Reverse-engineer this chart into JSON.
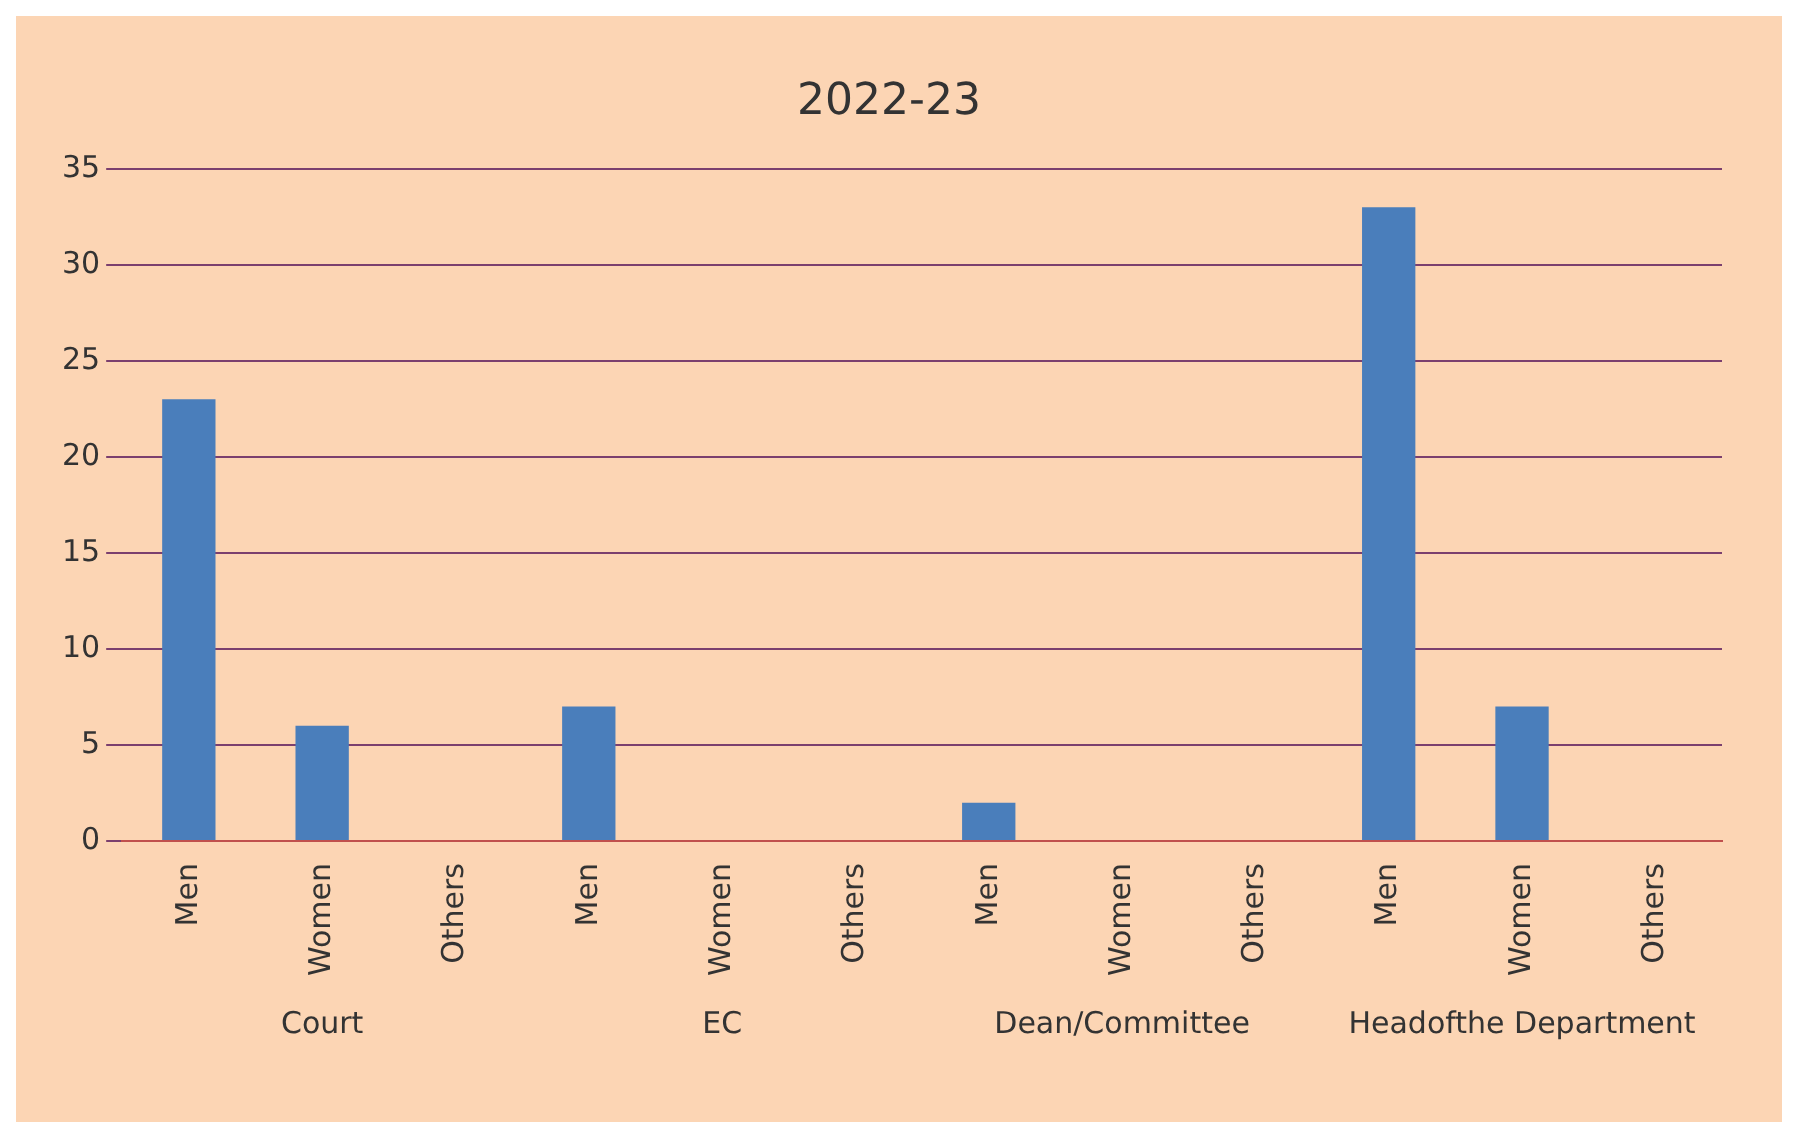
{
  "chart_data": {
    "type": "bar",
    "title": "2022-23",
    "categories": [
      "Men",
      "Women",
      "Others",
      "Men",
      "Women",
      "Others",
      "Men",
      "Women",
      "Others",
      "Men",
      "Women",
      "Others"
    ],
    "values": [
      23,
      6,
      0,
      7,
      0,
      0,
      2,
      0,
      0,
      33,
      7,
      0
    ],
    "color": "#4a7ebb",
    "ylim": [
      0,
      35
    ],
    "yticks": [
      0,
      5,
      10,
      15,
      20,
      25,
      30,
      35
    ],
    "grid": "y",
    "annotations": [
      "Court",
      "EC",
      "Dean/Committee",
      "Headofthe Department"
    ]
  }
}
